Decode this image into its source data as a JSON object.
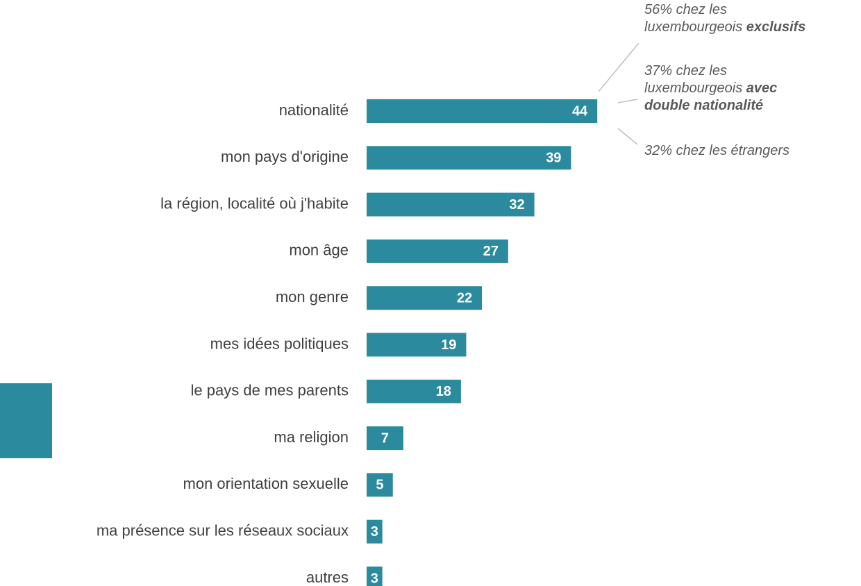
{
  "chart_data": {
    "type": "bar",
    "orientation": "horizontal",
    "categories": [
      "nationalité",
      "mon pays d'origine",
      "la région, localité où j'habite",
      "mon âge",
      "mon genre",
      "mes idées politiques",
      "le pays de mes parents",
      "ma religion",
      "mon orientation sexuelle",
      "ma présence sur les réseaux sociaux",
      "autres"
    ],
    "values": [
      44,
      39,
      32,
      27,
      22,
      19,
      18,
      7,
      5,
      3,
      3
    ],
    "color": "#2b8a9e",
    "annotations": [
      {
        "lines": [
          [
            {
              "text": "56% chez les"
            }
          ],
          [
            {
              "text": "luxembourgeois"
            },
            {
              "text": "exclusifs",
              "bold": true
            }
          ]
        ]
      },
      {
        "lines": [
          [
            {
              "text": "37% chez les"
            }
          ],
          [
            {
              "text": "luxembourgeois"
            },
            {
              "text": "avec",
              "bold": true
            }
          ],
          [
            {
              "text": "double nationalité",
              "bold": true
            }
          ]
        ]
      },
      {
        "lines": [
          [
            {
              "text": "32% chez les étrangers"
            }
          ]
        ]
      }
    ]
  }
}
